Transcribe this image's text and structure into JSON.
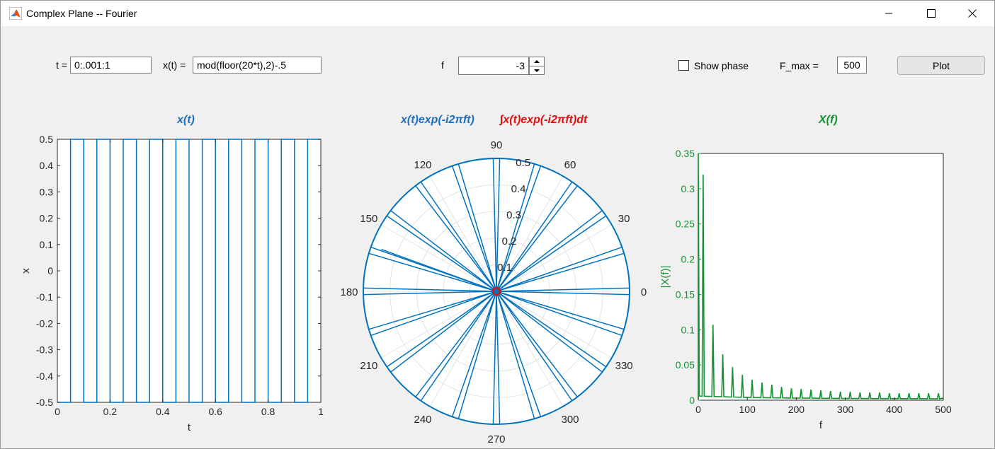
{
  "window": {
    "title": "Complex Plane -- Fourier"
  },
  "controls": {
    "t_label": "t =",
    "t_value": "0:.001:1",
    "x_label": "x(t) =",
    "x_value": "mod(floor(20*t),2)-.5",
    "f_label": "f",
    "f_value": "-3",
    "show_phase_label": "Show phase",
    "show_phase_checked": false,
    "fmax_label": "F_max =",
    "fmax_value": "500",
    "plot_label": "Plot"
  },
  "plot_titles": {
    "time": "x(t)",
    "polar_left": "x(t)exp(-i2πft)",
    "polar_right": "∫x(t)exp(-i2πft)dt",
    "spectrum": "X(f)"
  },
  "colors": {
    "blue": "#0072bd",
    "red": "#e01010",
    "green": "#11932f",
    "title_blue": "#1f6fc0"
  },
  "chart_data": [
    {
      "type": "line",
      "title": "x(t)",
      "xlabel": "t",
      "ylabel": "x",
      "xlim": [
        0,
        1
      ],
      "ylim": [
        -0.5,
        0.5
      ],
      "x_ticks": [
        "0",
        "0.2",
        "0.4",
        "0.6",
        "0.8",
        "1"
      ],
      "y_ticks": [
        "-0.5",
        "-0.4",
        "-0.3",
        "-0.2",
        "-0.1",
        "0",
        "0.1",
        "0.2",
        "0.3",
        "0.4",
        "0.5"
      ],
      "series": [
        {
          "x": [
            0,
            0.05,
            0.05,
            0.1,
            0.1,
            0.15,
            0.15,
            0.2,
            0.2,
            0.25,
            0.25,
            0.3,
            0.3,
            0.35,
            0.35,
            0.4,
            0.4,
            0.45,
            0.45,
            0.5,
            0.5,
            0.55,
            0.55,
            0.6,
            0.6,
            0.65,
            0.65,
            0.7,
            0.7,
            0.75,
            0.75,
            0.8,
            0.8,
            0.85,
            0.85,
            0.9,
            0.9,
            0.95,
            0.95,
            1
          ],
          "y": [
            -0.5,
            -0.5,
            0.5,
            0.5,
            -0.5,
            -0.5,
            0.5,
            0.5,
            -0.5,
            -0.5,
            0.5,
            0.5,
            -0.5,
            -0.5,
            0.5,
            0.5,
            -0.5,
            -0.5,
            0.5,
            0.5,
            -0.5,
            -0.5,
            0.5,
            0.5,
            -0.5,
            -0.5,
            0.5,
            0.5,
            -0.5,
            -0.5,
            0.5,
            0.5,
            -0.5,
            -0.5,
            0.5,
            0.5,
            -0.5,
            -0.5,
            0.5,
            0.5
          ]
        }
      ]
    },
    {
      "type": "polar",
      "title": "x(t)exp(-i2πft)",
      "rlim": [
        0,
        0.5
      ],
      "r_ticks": [
        "0.1",
        "0.2",
        "0.3",
        "0.4",
        "0.5"
      ],
      "theta_ticks": [
        "0",
        "30",
        "60",
        "90",
        "120",
        "150",
        "180",
        "210",
        "240",
        "270",
        "300",
        "330"
      ],
      "radius": 0.5,
      "spoke_angles_deg": [
        0,
        18,
        36,
        54,
        72,
        90,
        108,
        126,
        144,
        162,
        180,
        198,
        216,
        234,
        252,
        270,
        288,
        306,
        324,
        342
      ],
      "integral_value": {
        "magnitude": 0.0,
        "color": "red"
      }
    },
    {
      "type": "line",
      "title": "X(f)",
      "xlabel": "f",
      "ylabel": "|X(f)|",
      "xlim": [
        0,
        500
      ],
      "ylim": [
        0,
        0.35
      ],
      "x_ticks": [
        "0",
        "100",
        "200",
        "300",
        "400",
        "500"
      ],
      "y_ticks": [
        "0",
        "0.05",
        "0.1",
        "0.15",
        "0.2",
        "0.25",
        "0.3",
        "0.35"
      ],
      "peaks": [
        {
          "f": 0,
          "value": 0.35
        },
        {
          "f": 10,
          "value": 0.32
        },
        {
          "f": 30,
          "value": 0.107
        },
        {
          "f": 50,
          "value": 0.065
        },
        {
          "f": 70,
          "value": 0.047
        },
        {
          "f": 90,
          "value": 0.036
        },
        {
          "f": 110,
          "value": 0.029
        },
        {
          "f": 130,
          "value": 0.025
        },
        {
          "f": 150,
          "value": 0.022
        },
        {
          "f": 170,
          "value": 0.019
        },
        {
          "f": 190,
          "value": 0.017
        },
        {
          "f": 210,
          "value": 0.016
        },
        {
          "f": 230,
          "value": 0.015
        },
        {
          "f": 250,
          "value": 0.014
        },
        {
          "f": 270,
          "value": 0.013
        },
        {
          "f": 290,
          "value": 0.012
        },
        {
          "f": 310,
          "value": 0.012
        },
        {
          "f": 330,
          "value": 0.011
        },
        {
          "f": 350,
          "value": 0.011
        },
        {
          "f": 370,
          "value": 0.011
        },
        {
          "f": 390,
          "value": 0.01
        },
        {
          "f": 410,
          "value": 0.01
        },
        {
          "f": 430,
          "value": 0.01
        },
        {
          "f": 450,
          "value": 0.01
        },
        {
          "f": 470,
          "value": 0.01
        },
        {
          "f": 490,
          "value": 0.01
        }
      ]
    }
  ]
}
